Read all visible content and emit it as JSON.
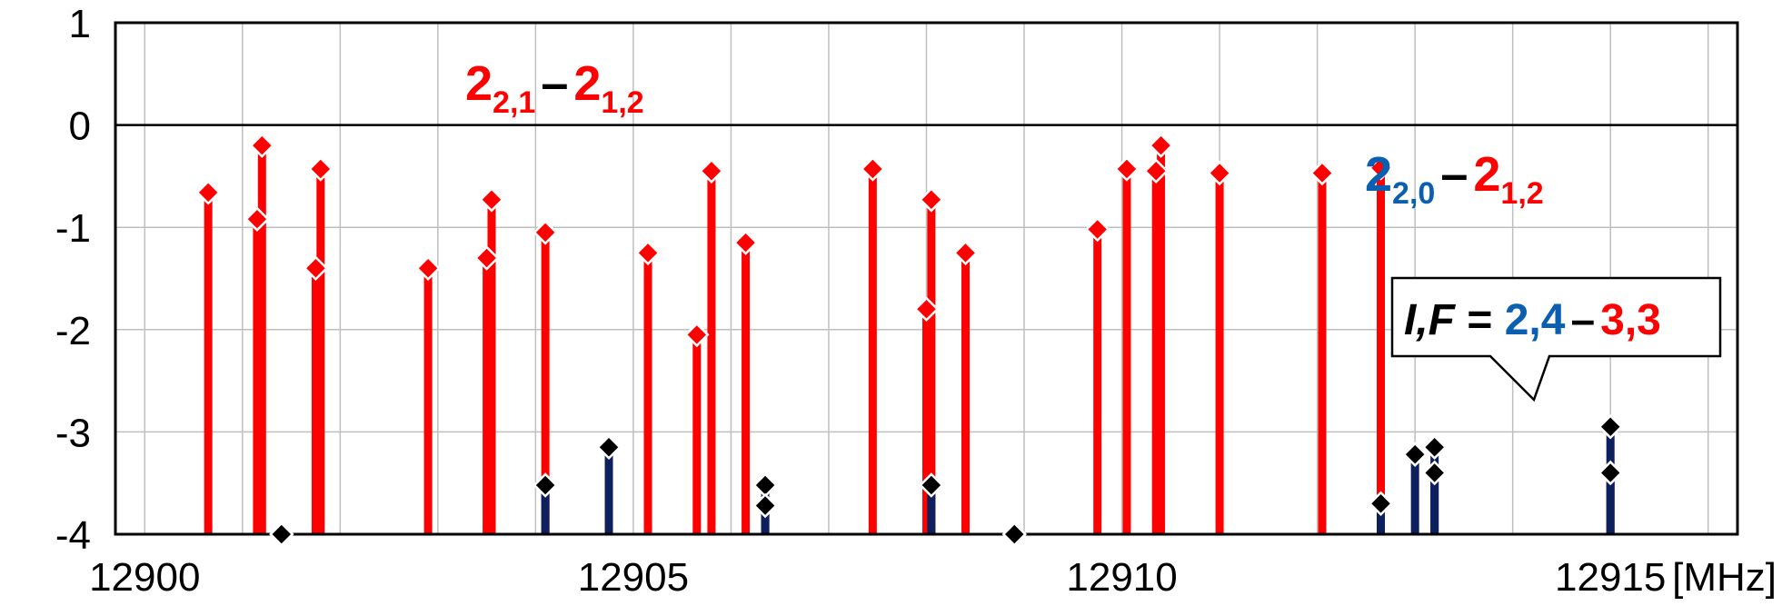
{
  "chart_data": {
    "type": "stem",
    "x_unit_label": "[MHz]",
    "xlim": [
      12900,
      12915
    ],
    "ylim": [
      -4,
      1
    ],
    "x_ticks": [
      12900,
      12905,
      12910,
      12915
    ],
    "y_ticks": [
      1,
      0,
      -1,
      -2,
      -3,
      -4
    ],
    "grid": true,
    "colors": {
      "red": "#ff0000",
      "navy": "#0d1f5c",
      "blue": "#0a5fb0",
      "black": "#000000",
      "grid": "#bfbfbf"
    },
    "series": [
      {
        "color": "#ff0000",
        "points": [
          {
            "x": 12900.65,
            "y": -0.66
          },
          {
            "x": 12901.15,
            "y": -0.92
          },
          {
            "x": 12901.2,
            "y": -0.2
          },
          {
            "x": 12901.75,
            "y": -1.4
          },
          {
            "x": 12901.8,
            "y": -0.43
          },
          {
            "x": 12902.9,
            "y": -1.4
          },
          {
            "x": 12903.5,
            "y": -1.3
          },
          {
            "x": 12903.55,
            "y": -0.73
          },
          {
            "x": 12904.1,
            "y": -1.05
          },
          {
            "x": 12905.15,
            "y": -1.25
          },
          {
            "x": 12905.65,
            "y": -2.05
          },
          {
            "x": 12905.8,
            "y": -0.45
          },
          {
            "x": 12906.15,
            "y": -1.15
          },
          {
            "x": 12907.45,
            "y": -0.43
          },
          {
            "x": 12908.0,
            "y": -1.8
          },
          {
            "x": 12908.05,
            "y": -0.73
          },
          {
            "x": 12908.4,
            "y": -1.25
          },
          {
            "x": 12909.75,
            "y": -1.02
          },
          {
            "x": 12910.05,
            "y": -0.43
          },
          {
            "x": 12910.35,
            "y": -0.45
          },
          {
            "x": 12910.4,
            "y": -0.2
          },
          {
            "x": 12911.0,
            "y": -0.47
          },
          {
            "x": 12912.05,
            "y": -0.47
          },
          {
            "x": 12912.65,
            "y": -0.42
          }
        ]
      },
      {
        "color": "#0d1f5c",
        "points": [
          {
            "x": 12901.4,
            "y": -4.0
          },
          {
            "x": 12904.1,
            "y": -3.52
          },
          {
            "x": 12904.75,
            "y": -3.15
          },
          {
            "x": 12906.35,
            "y": -3.52
          },
          {
            "x": 12906.35,
            "y": -3.72
          },
          {
            "x": 12908.05,
            "y": -3.52
          },
          {
            "x": 12908.9,
            "y": -4.0
          },
          {
            "x": 12912.65,
            "y": -3.7
          },
          {
            "x": 12913.0,
            "y": -3.22
          },
          {
            "x": 12913.2,
            "y": -3.15
          },
          {
            "x": 12913.2,
            "y": -3.4
          },
          {
            "x": 12915.0,
            "y": -2.95
          },
          {
            "x": 12915.0,
            "y": -3.4
          }
        ]
      }
    ],
    "annotations": {
      "a1": {
        "main1": "2",
        "sub1": "2,1",
        "dash": "–",
        "main2": "2",
        "sub2": "1,2"
      },
      "a2": {
        "main1": "2",
        "sub1": "2,0",
        "dash": "–",
        "main2": "2",
        "sub2": "1,2"
      },
      "callout": {
        "lhs": "I,F",
        "eq": " = ",
        "v1": "2,4",
        "dash": "–",
        "v2": "3,3"
      }
    }
  }
}
